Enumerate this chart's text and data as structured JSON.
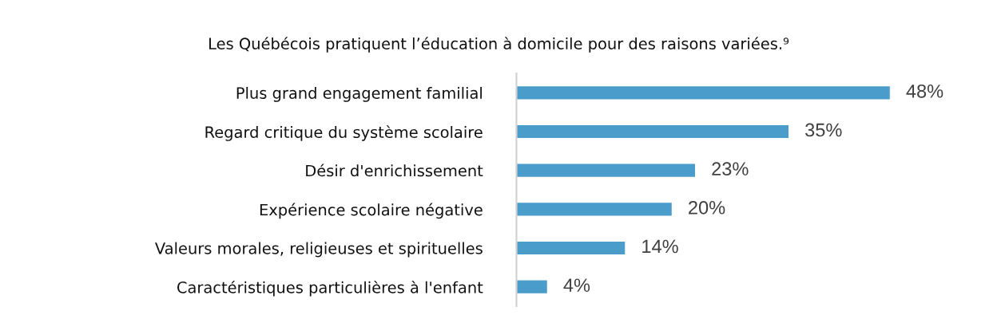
{
  "chart_data": {
    "type": "bar",
    "orientation": "horizontal",
    "title": "Les Québécois pratiquent l’éducation à domicile pour des raisons variées.⁹",
    "categories": [
      "Plus grand engagement familial",
      "Regard critique du système scolaire",
      "Désir d'enrichissement",
      "Expérience scolaire négative",
      "Valeurs morales, religieuses et spirituelles",
      "Caractéristiques particulières à l'enfant"
    ],
    "values": [
      48,
      35,
      23,
      20,
      14,
      4
    ],
    "value_labels": [
      "48%",
      "35%",
      "23%",
      "20%",
      "14%",
      "4%"
    ],
    "color": "#4a9ccb",
    "tick_labels": "y",
    "grid": false,
    "legend": false
  }
}
